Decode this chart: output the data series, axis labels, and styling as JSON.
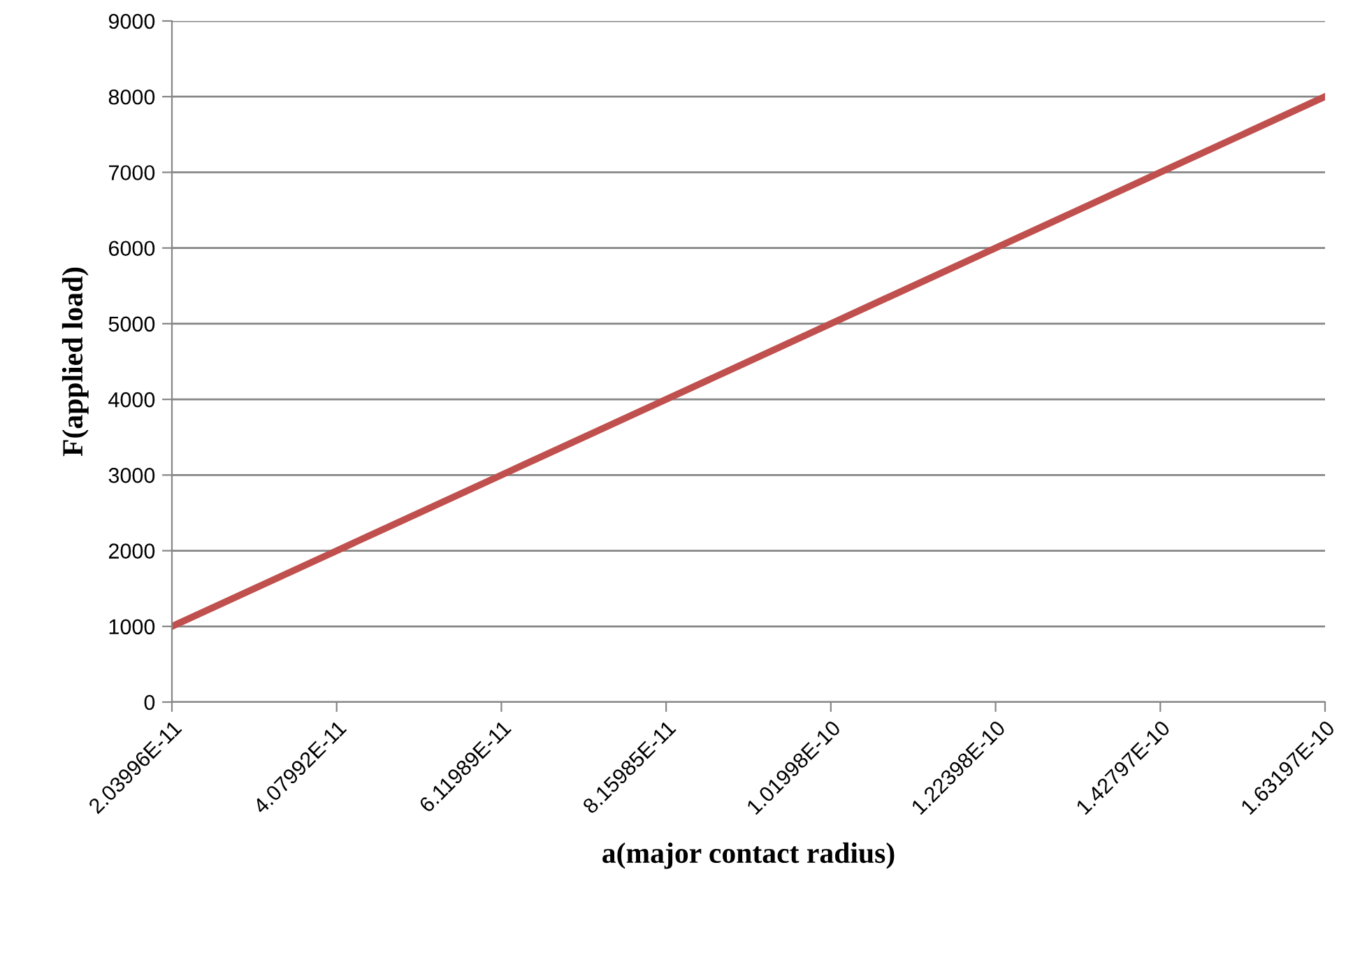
{
  "chart_data": {
    "type": "line",
    "xlabel": "a(major contact radius)",
    "ylabel": "F(applied load)",
    "categories": [
      "2.03996E-11",
      "4.07992E-11",
      "6.11989E-11",
      "8.15985E-11",
      "1.01998E-10",
      "1.22398E-10",
      "1.42797E-10",
      "1.63197E-10"
    ],
    "series": [
      {
        "color": "#c0504d",
        "values": [
          1000,
          2000,
          3000,
          4000,
          5000,
          6000,
          7000,
          8000
        ]
      }
    ],
    "ylim": [
      0,
      9000
    ],
    "yticks": [
      0,
      1000,
      2000,
      3000,
      4000,
      5000,
      6000,
      7000,
      8000,
      9000
    ],
    "grid": "y",
    "legend": false,
    "marker": "none",
    "line_style": "solid"
  }
}
